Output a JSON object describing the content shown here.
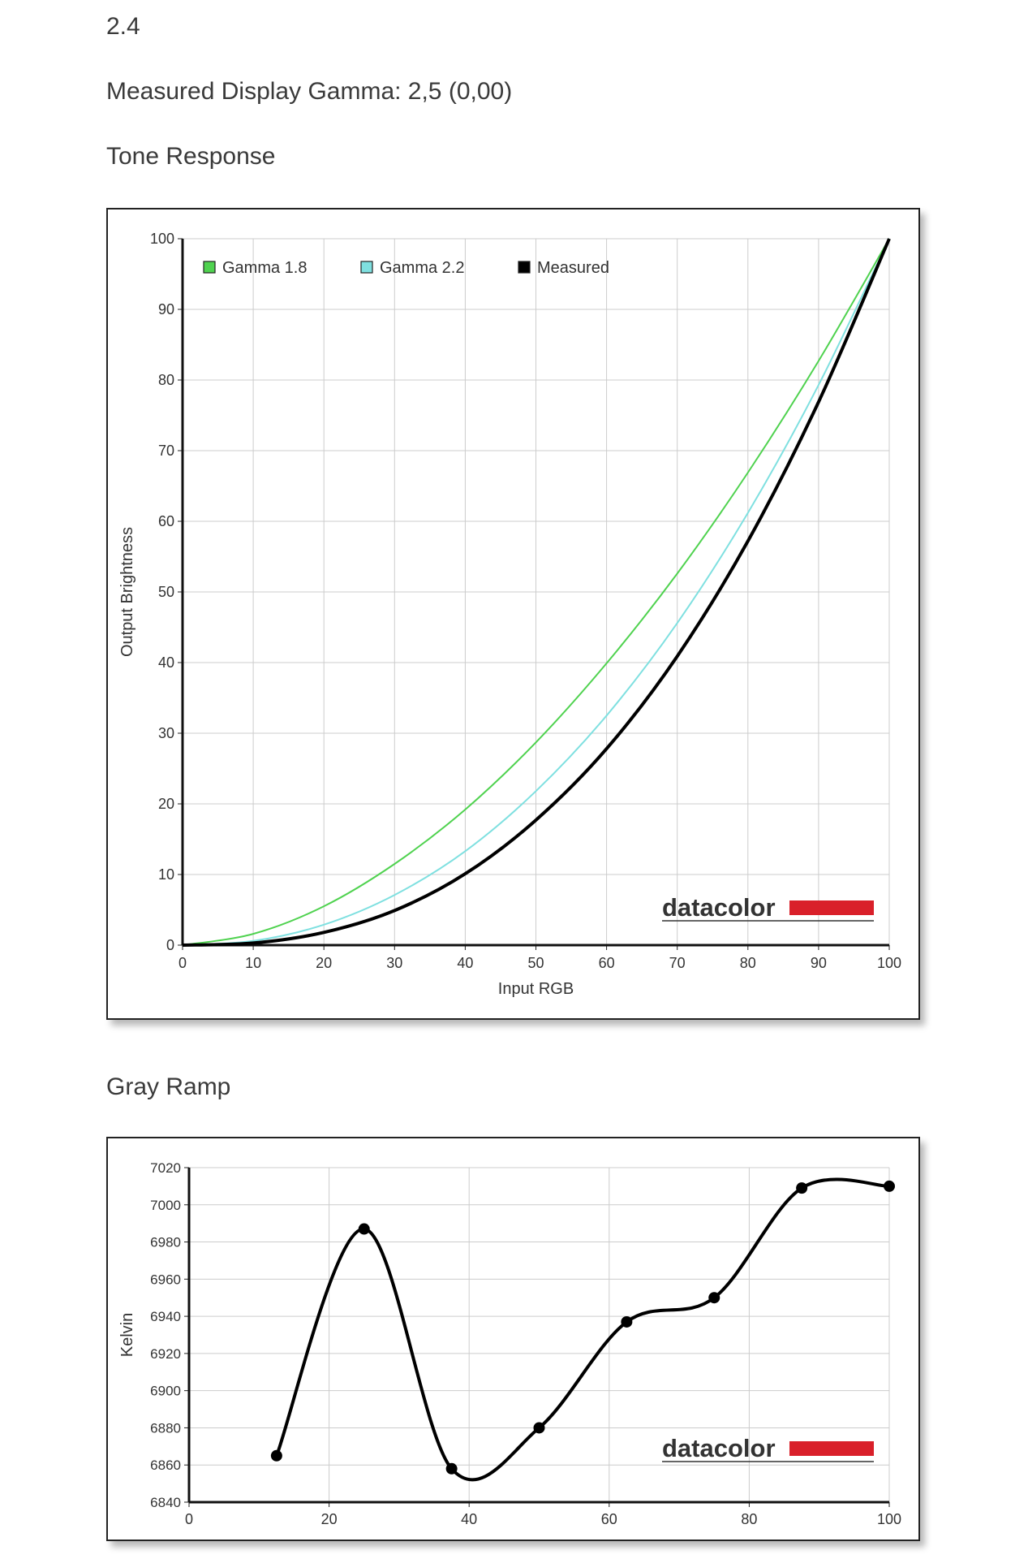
{
  "headings": {
    "top": "2.4",
    "gamma": "Measured Display Gamma: 2,5 (0,00)",
    "tone": "Tone Response",
    "gray": "Gray Ramp"
  },
  "colors": {
    "gamma18": "#4fd24f",
    "gamma22": "#7fe0e0",
    "measured": "#000000",
    "grid": "#cccccc",
    "logo_bar": "#d9202a"
  },
  "chart_data": [
    {
      "type": "line",
      "title": "",
      "xlabel": "Input RGB",
      "ylabel": "Output Brightness",
      "xlim": [
        0,
        100
      ],
      "ylim": [
        0,
        100
      ],
      "xticks": [
        "0",
        "10",
        "20",
        "30",
        "40",
        "50",
        "60",
        "70",
        "80",
        "90",
        "100"
      ],
      "yticks": [
        "0",
        "10",
        "20",
        "30",
        "40",
        "50",
        "60",
        "70",
        "80",
        "90",
        "100"
      ],
      "grid": true,
      "legend_position": "top-left",
      "watermark": "datacolor",
      "x": [
        0,
        10,
        20,
        30,
        40,
        50,
        60,
        70,
        80,
        90,
        100
      ],
      "series": [
        {
          "name": "Gamma 1.8",
          "color": "#4fd24f",
          "values": [
            0,
            1.6,
            5.5,
            11.5,
            19.2,
            28.7,
            39.9,
            52.6,
            66.9,
            82.7,
            100
          ]
        },
        {
          "name": "Gamma 2.2",
          "color": "#7fe0e0",
          "values": [
            0,
            0.6,
            2.9,
            7.1,
            13.3,
            21.8,
            32.5,
            45.6,
            61.2,
            79.3,
            100
          ]
        },
        {
          "name": "Measured",
          "color": "#000000",
          "values": [
            0,
            0.3,
            1.8,
            4.9,
            10.1,
            17.7,
            27.8,
            40.9,
            57.2,
            76.9,
            100
          ]
        }
      ]
    },
    {
      "type": "line",
      "title": "",
      "xlabel": "Input RGB",
      "ylabel": "Kelvin",
      "xlim": [
        0,
        100
      ],
      "ylim": [
        6840,
        7020
      ],
      "xticks": [
        "0",
        "20",
        "40",
        "60",
        "80",
        "100"
      ],
      "yticks": [
        "6840",
        "6860",
        "6880",
        "6900",
        "6920",
        "6940",
        "6960",
        "6980",
        "7000",
        "7020"
      ],
      "grid": true,
      "watermark": "datacolor",
      "series": [
        {
          "name": "",
          "color": "#000000",
          "x": [
            12.5,
            25,
            37.5,
            50,
            62.5,
            75,
            87.5,
            100
          ],
          "values": [
            6865,
            6987,
            6858,
            6880,
            6937,
            6950,
            7009,
            7010
          ]
        }
      ]
    }
  ]
}
